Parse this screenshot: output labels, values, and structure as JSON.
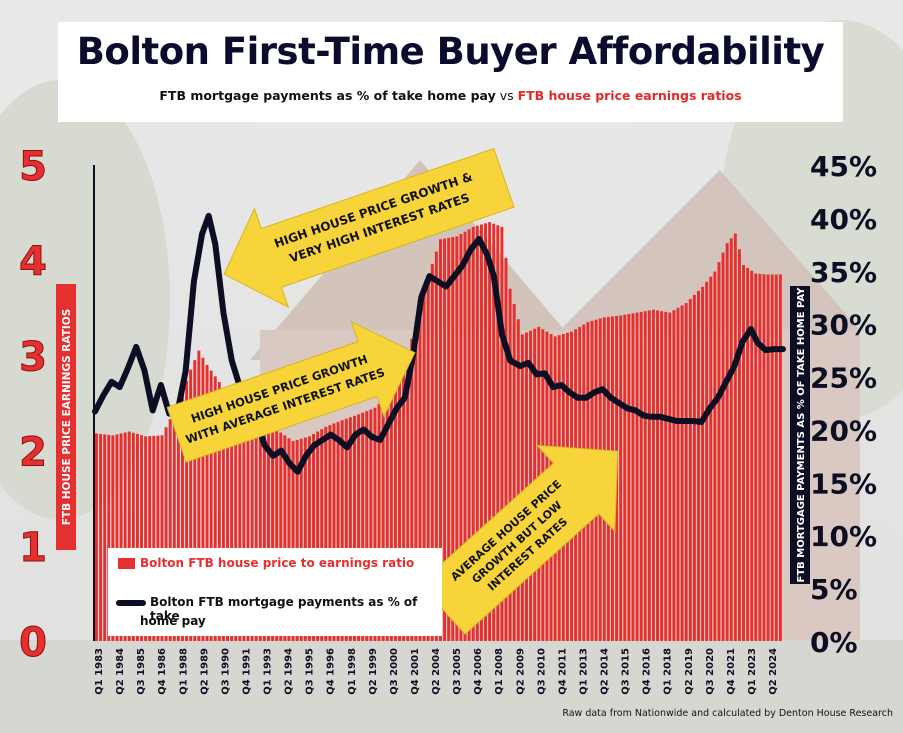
{
  "header": {
    "title": "Bolton First-Time Buyer Affordability",
    "subtitle_part1": "FTB mortgage payments as % of take home pay",
    "subtitle_vs": " vs ",
    "subtitle_part2": "FTB house price earnings ratios"
  },
  "axes": {
    "left_label": "FTB HOUSE PRICE EARNINGS RATIOS",
    "right_label": "FTB MORTGAGE PAYMENTS AS % OF TAKE HOME PAY",
    "left_ticks": [
      "0",
      "1",
      "2",
      "3",
      "4",
      "5"
    ],
    "right_ticks": [
      "0%",
      "5%",
      "10%",
      "15%",
      "20%",
      "25%",
      "30%",
      "35%",
      "40%",
      "45%"
    ]
  },
  "legend": {
    "bar_label": "Bolton FTB house price to earnings ratio",
    "line_label_1": "Bolton FTB mortgage payments as % of take",
    "line_label_2": "home pay"
  },
  "annotations": {
    "a1_line1": "HIGH HOUSE PRICE GROWTH &",
    "a1_line2": "VERY HIGH INTEREST RATES",
    "a2_line1": "HIGH HOUSE PRICE GROWTH",
    "a2_line2": "WITH AVERAGE INTEREST RATES",
    "a3_line1": "AVERAGE HOUSE PRICE",
    "a3_line2": "GROWTH BUT LOW",
    "a3_line3": "INTEREST RATES"
  },
  "source": "Raw data from Nationwide and calculated by Denton House Research",
  "colors": {
    "bars": "#e63030",
    "line": "#0c0f24",
    "arrow": "#f7d53a",
    "title": "#0b0b2e"
  },
  "chart_data": {
    "type": "bar",
    "x_tick_labels": [
      "Q1 1983",
      "Q2 1984",
      "Q3 1985",
      "Q4 1986",
      "Q1 1988",
      "Q2 1989",
      "Q3 1990",
      "Q4 1991",
      "Q1 1993",
      "Q2 1994",
      "Q3 1995",
      "Q4 1996",
      "Q1 1998",
      "Q2 1999",
      "Q3 2000",
      "Q4 2001",
      "Q2 2004",
      "Q3 2005",
      "Q4 2006",
      "Q1 2008",
      "Q2 2009",
      "Q3 2010",
      "Q4 2011",
      "Q1 2013",
      "Q2 2014",
      "Q3 2015",
      "Q4 2016",
      "Q1 2018",
      "Q2 2019",
      "Q3 2020",
      "Q4 2021",
      "Q1 2023",
      "Q2 2024"
    ],
    "x_range": [
      1983.0,
      2024.75
    ],
    "y_left_range": [
      0,
      5
    ],
    "y_right_range": [
      0,
      45
    ],
    "series": [
      {
        "name": "Bolton FTB house price to earnings ratio",
        "type": "bar",
        "axis": "left",
        "points": [
          [
            1983.0,
            2.18
          ],
          [
            1984.0,
            2.16
          ],
          [
            1985.0,
            2.2
          ],
          [
            1986.0,
            2.15
          ],
          [
            1987.0,
            2.16
          ],
          [
            1988.0,
            2.5
          ],
          [
            1988.75,
            2.85
          ],
          [
            1989.25,
            3.05
          ],
          [
            1989.75,
            2.9
          ],
          [
            1990.5,
            2.72
          ],
          [
            1991.0,
            2.55
          ],
          [
            1992.0,
            2.35
          ],
          [
            1993.0,
            2.3
          ],
          [
            1994.0,
            2.22
          ],
          [
            1995.0,
            2.1
          ],
          [
            1996.0,
            2.15
          ],
          [
            1997.0,
            2.25
          ],
          [
            1998.0,
            2.32
          ],
          [
            1999.0,
            2.38
          ],
          [
            2000.0,
            2.45
          ],
          [
            2001.0,
            2.62
          ],
          [
            2002.0,
            3.0
          ],
          [
            2003.0,
            3.7
          ],
          [
            2004.0,
            4.22
          ],
          [
            2005.0,
            4.25
          ],
          [
            2006.0,
            4.35
          ],
          [
            2007.0,
            4.4
          ],
          [
            2007.75,
            4.35
          ],
          [
            2008.25,
            3.7
          ],
          [
            2009.0,
            3.22
          ],
          [
            2010.0,
            3.3
          ],
          [
            2011.0,
            3.2
          ],
          [
            2012.0,
            3.25
          ],
          [
            2013.0,
            3.35
          ],
          [
            2014.0,
            3.4
          ],
          [
            2015.0,
            3.42
          ],
          [
            2016.0,
            3.45
          ],
          [
            2017.0,
            3.48
          ],
          [
            2018.0,
            3.45
          ],
          [
            2019.0,
            3.55
          ],
          [
            2020.0,
            3.72
          ],
          [
            2020.75,
            3.88
          ],
          [
            2021.5,
            4.18
          ],
          [
            2022.0,
            4.28
          ],
          [
            2022.5,
            3.95
          ],
          [
            2023.25,
            3.86
          ],
          [
            2024.0,
            3.85
          ],
          [
            2024.75,
            3.85
          ]
        ]
      },
      {
        "name": "Bolton FTB mortgage payments as % of take home pay",
        "type": "line",
        "axis": "right",
        "points": [
          [
            1983.0,
            21.7
          ],
          [
            1983.5,
            23.2
          ],
          [
            1984.0,
            24.5
          ],
          [
            1984.5,
            24.0
          ],
          [
            1985.0,
            25.8
          ],
          [
            1985.5,
            27.8
          ],
          [
            1986.0,
            25.6
          ],
          [
            1986.5,
            21.8
          ],
          [
            1987.0,
            24.2
          ],
          [
            1987.5,
            21.5
          ],
          [
            1988.0,
            21.6
          ],
          [
            1988.5,
            25.5
          ],
          [
            1989.0,
            34.0
          ],
          [
            1989.5,
            38.5
          ],
          [
            1989.9,
            40.2
          ],
          [
            1990.3,
            37.5
          ],
          [
            1990.8,
            31.0
          ],
          [
            1991.3,
            26.5
          ],
          [
            1991.8,
            24.0
          ],
          [
            1992.3,
            22.5
          ],
          [
            1992.8,
            20.8
          ],
          [
            1993.3,
            18.5
          ],
          [
            1993.8,
            17.5
          ],
          [
            1994.3,
            18.0
          ],
          [
            1994.8,
            16.8
          ],
          [
            1995.3,
            16.0
          ],
          [
            1995.8,
            17.5
          ],
          [
            1996.3,
            18.5
          ],
          [
            1996.8,
            19.0
          ],
          [
            1997.3,
            19.5
          ],
          [
            1997.8,
            19.0
          ],
          [
            1998.3,
            18.3
          ],
          [
            1998.8,
            19.5
          ],
          [
            1999.3,
            20.0
          ],
          [
            1999.8,
            19.3
          ],
          [
            2000.3,
            19.0
          ],
          [
            2000.8,
            20.5
          ],
          [
            2001.3,
            22.0
          ],
          [
            2001.8,
            23.0
          ],
          [
            2002.3,
            27.0
          ],
          [
            2002.8,
            32.5
          ],
          [
            2003.3,
            34.5
          ],
          [
            2003.8,
            34.0
          ],
          [
            2004.3,
            33.5
          ],
          [
            2004.8,
            34.5
          ],
          [
            2005.3,
            35.5
          ],
          [
            2005.8,
            37.0
          ],
          [
            2006.3,
            38.0
          ],
          [
            2006.8,
            36.5
          ],
          [
            2007.2,
            34.5
          ],
          [
            2007.7,
            29.0
          ],
          [
            2008.2,
            26.5
          ],
          [
            2008.8,
            26.0
          ],
          [
            2009.3,
            26.3
          ],
          [
            2009.8,
            25.2
          ],
          [
            2010.3,
            25.3
          ],
          [
            2010.8,
            24.0
          ],
          [
            2011.3,
            24.2
          ],
          [
            2011.8,
            23.5
          ],
          [
            2012.3,
            23.0
          ],
          [
            2012.8,
            23.0
          ],
          [
            2013.3,
            23.5
          ],
          [
            2013.8,
            23.8
          ],
          [
            2014.3,
            23.0
          ],
          [
            2014.8,
            22.5
          ],
          [
            2015.3,
            22.0
          ],
          [
            2015.8,
            21.8
          ],
          [
            2016.3,
            21.3
          ],
          [
            2016.8,
            21.2
          ],
          [
            2017.3,
            21.2
          ],
          [
            2017.8,
            21.0
          ],
          [
            2018.3,
            20.8
          ],
          [
            2018.8,
            20.8
          ],
          [
            2019.3,
            20.8
          ],
          [
            2019.8,
            20.7
          ],
          [
            2020.3,
            22.0
          ],
          [
            2020.8,
            23.0
          ],
          [
            2021.3,
            24.5
          ],
          [
            2021.8,
            26.0
          ],
          [
            2022.3,
            28.3
          ],
          [
            2022.8,
            29.5
          ],
          [
            2023.2,
            28.2
          ],
          [
            2023.7,
            27.5
          ],
          [
            2024.2,
            27.6
          ],
          [
            2024.75,
            27.6
          ]
        ]
      }
    ]
  }
}
